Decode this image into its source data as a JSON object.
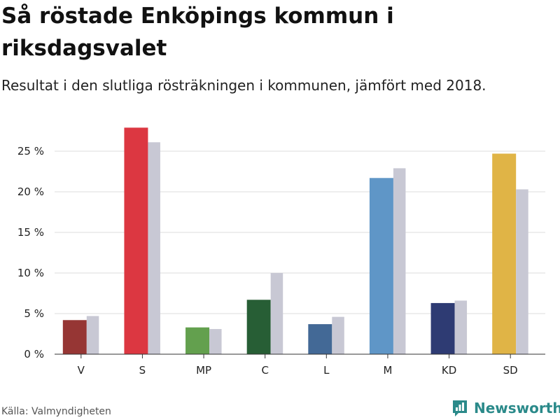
{
  "title": "Så röstade Enköpings kommun i riksdagsvalet",
  "subtitle": "Resultat i den slutliga rösträkningen i kommunen, jämfört med 2018.",
  "source": "Källa: Valmyndigheten",
  "brand": {
    "name": "Newsworthy",
    "icon": "bar-chart-logo-icon",
    "color": "#2b8a8a"
  },
  "chart_data": {
    "type": "bar",
    "categories": [
      "V",
      "S",
      "MP",
      "C",
      "L",
      "M",
      "KD",
      "SD"
    ],
    "series": [
      {
        "values": [
          4.2,
          27.9,
          3.3,
          6.7,
          3.7,
          21.7,
          6.3,
          24.7
        ],
        "colors": [
          "#963634",
          "#dc3741",
          "#63a04e",
          "#275e35",
          "#436996",
          "#5f96c7",
          "#2e3b73",
          "#e0b446"
        ]
      },
      {
        "values": [
          4.7,
          26.1,
          3.1,
          10.0,
          4.6,
          22.9,
          6.6,
          20.3
        ],
        "color": "#c8c8d4"
      }
    ],
    "ylim": [
      0,
      30
    ],
    "yticks": [
      0,
      5,
      10,
      15,
      20,
      25
    ],
    "ytick_labels": [
      "0 %",
      "5 %",
      "10 %",
      "15 %",
      "20 %",
      "25 %"
    ],
    "grid": true
  }
}
